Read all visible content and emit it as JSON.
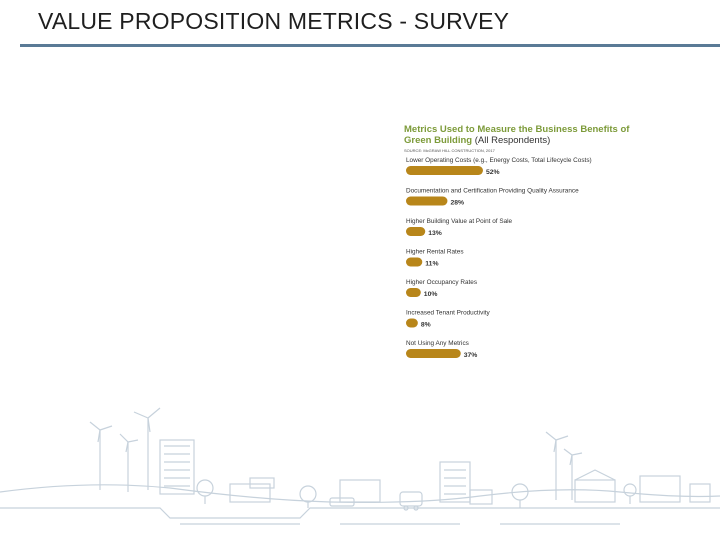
{
  "slide": {
    "title": "VALUE PROPOSITION METRICS - SURVEY"
  },
  "chart_data": {
    "type": "bar",
    "orientation": "horizontal",
    "title": "Metrics Used to Measure the Business Benefits of Green Building",
    "subtitle": "(All Respondents)",
    "source": "SOURCE: McGRAW HILL CONSTRUCTION, 2017",
    "bar_color": "#b8861a",
    "unit": "%",
    "categories": [
      "Lower Operating Costs (e.g., Energy Costs, Total Lifecycle Costs)",
      "Documentation and Certification Providing Quality Assurance",
      "Higher Building Value at Point of Sale",
      "Higher Rental Rates",
      "Higher Occupancy Rates",
      "Increased Tenant Productivity",
      "Not Using Any Metrics"
    ],
    "values": [
      52,
      28,
      13,
      11,
      10,
      8,
      37
    ],
    "value_labels": [
      "52%",
      "28%",
      "13%",
      "11%",
      "10%",
      "8%",
      "37%"
    ],
    "xlim": [
      0,
      100
    ]
  }
}
